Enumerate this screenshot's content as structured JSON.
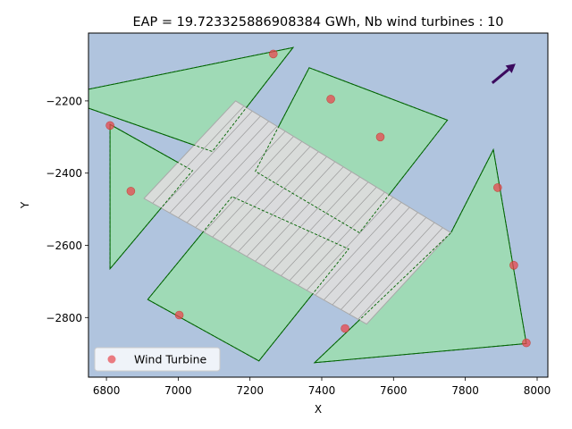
{
  "chart_data": {
    "type": "scatter",
    "title": "EAP = 19.723325886908384 GWh, Nb wind turbines : 10",
    "xlabel": "X",
    "ylabel": "Y",
    "xlim": [
      6750,
      8030
    ],
    "ylim": [
      -2965,
      -2012
    ],
    "xticks": [
      {
        "value": 6800,
        "label": "6800"
      },
      {
        "value": 7000,
        "label": "7000"
      },
      {
        "value": 7200,
        "label": "7200"
      },
      {
        "value": 7400,
        "label": "7400"
      },
      {
        "value": 7600,
        "label": "7600"
      },
      {
        "value": 7800,
        "label": "7800"
      },
      {
        "value": 8000,
        "label": "8000"
      }
    ],
    "yticks": [
      {
        "value": -2200,
        "label": "−2200"
      },
      {
        "value": -2400,
        "label": "−2400"
      },
      {
        "value": -2600,
        "label": "−2600"
      },
      {
        "value": -2800,
        "label": "−2800"
      }
    ],
    "background_color": "#b0c4de",
    "zone_fill": "#9fdab6",
    "zone_edge": "#006400",
    "exclusion_fill": "#dcdcdc",
    "exclusion_edge": "#a9a9a9",
    "turbine_color": "#e8474f",
    "arrow_color": "#3b0a5e",
    "zones": [
      [
        [
          6655,
          -2187
        ],
        [
          7320,
          -2052
        ],
        [
          7095,
          -2340
        ]
      ],
      [
        [
          6810,
          -2265
        ],
        [
          7040,
          -2393
        ],
        [
          6810,
          -2665
        ]
      ],
      [
        [
          7365,
          -2108
        ],
        [
          7750,
          -2253
        ],
        [
          7505,
          -2565
        ],
        [
          7215,
          -2395
        ]
      ],
      [
        [
          7150,
          -2465
        ],
        [
          6915,
          -2750
        ],
        [
          7225,
          -2920
        ],
        [
          7475,
          -2610
        ]
      ],
      [
        [
          7878,
          -2335
        ],
        [
          7970,
          -2872
        ],
        [
          7380,
          -2925
        ],
        [
          7760,
          -2565
        ]
      ]
    ],
    "exclusion_zone": [
      [
        6905,
        -2470
      ],
      [
        7160,
        -2200
      ],
      [
        7760,
        -2565
      ],
      [
        7525,
        -2818
      ]
    ],
    "hatch_lines": 26,
    "wind_arrow": {
      "from": [
        7875,
        -2150
      ],
      "to": [
        7940,
        -2097
      ]
    },
    "turbines": {
      "name": "Wind Turbine",
      "x": [
        6810,
        6868,
        7265,
        7425,
        7563,
        7003,
        7465,
        7890,
        7935,
        7970
      ],
      "y": [
        -2268,
        -2450,
        -2070,
        -2195,
        -2300,
        -2793,
        -2830,
        -2440,
        -2655,
        -2870
      ]
    },
    "legend": {
      "label": "Wind Turbine",
      "position": "lower-left"
    }
  }
}
